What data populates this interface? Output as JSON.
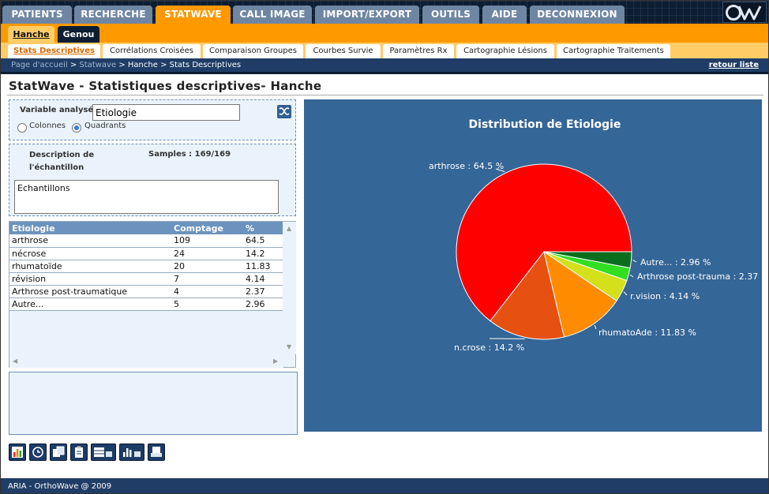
{
  "nav": {
    "main_tabs": [
      "PATIENTS",
      "RECHERCHE",
      "STATWAVE",
      "CALL IMAGE",
      "IMPORT/EXPORT",
      "OUTILS",
      "AIDE",
      "DECONNEXION"
    ],
    "logo_icon": "ow-logo",
    "sub_tabs": [
      "Hanche",
      "Genou"
    ],
    "tool_tabs": [
      "Stats Descriptives",
      "Corrélations Croisées",
      "Comparaison Groupes",
      "Courbes Survie",
      "Paramètres Rx",
      "Cartographie Lésions",
      "Cartographie Traitements"
    ]
  },
  "breadcrumb": {
    "home": "Page d'accueil",
    "sep": ">",
    "statwave": "Statwave",
    "hanche": "Hanche",
    "current": "Stats Descriptives",
    "return_link": "retour liste"
  },
  "page": {
    "title": "StatWave - Statistiques descriptives- Hanche"
  },
  "variable": {
    "label": "Variable analysée",
    "value": "Etiologie",
    "swap_icon": "swap-icon",
    "radio_columns": "Colonnes",
    "radio_quadrants": "Quadrants",
    "selected": "Quadrants"
  },
  "description": {
    "label": "Description de l'échantillon",
    "samples": "Samples : 169/169",
    "textarea_value": "Echantillons"
  },
  "table": {
    "headers": [
      "Etiologie",
      "Comptage",
      "%"
    ],
    "rows": [
      [
        "arthrose",
        "109",
        "64.5"
      ],
      [
        "nécrose",
        "24",
        "14.2"
      ],
      [
        "rhumatoïde",
        "20",
        "11.83"
      ],
      [
        "révision",
        "7",
        "4.14"
      ],
      [
        "Arthrose post-traumatique",
        "4",
        "2.37"
      ],
      [
        "Autre...",
        "5",
        "2.96"
      ]
    ]
  },
  "toolbar_icons": [
    "bar-chart-icon",
    "refresh-icon",
    "copy-icon",
    "clipboard-icon",
    "table-export-icon",
    "chart-export-icon",
    "print-icon"
  ],
  "colors": {
    "accent": "#ff9900",
    "navy": "#1f3d66",
    "chart_bg": "#346697"
  },
  "footer": {
    "text": "ARIA - OrthoWave @ 2009"
  },
  "chart_data": {
    "type": "pie",
    "title": "Distribution de Etiologie",
    "slices": [
      {
        "label": "arthrose : 64.5 %",
        "value": 64.5,
        "color": "#ff0000"
      },
      {
        "label": "n.crose : 14.2 %",
        "value": 14.2,
        "color": "#e65010"
      },
      {
        "label": "rhumatoAde : 11.83 %",
        "value": 11.83,
        "color": "#ff8c00"
      },
      {
        "label": "r.vision : 4.14 %",
        "value": 4.14,
        "color": "#d4e01c"
      },
      {
        "label": "Arthrose post-trauma : 2.37",
        "value": 2.37,
        "color": "#33dd22"
      },
      {
        "label": "Autre... : 2.96 %",
        "value": 2.96,
        "color": "#0b6e1f"
      }
    ]
  }
}
